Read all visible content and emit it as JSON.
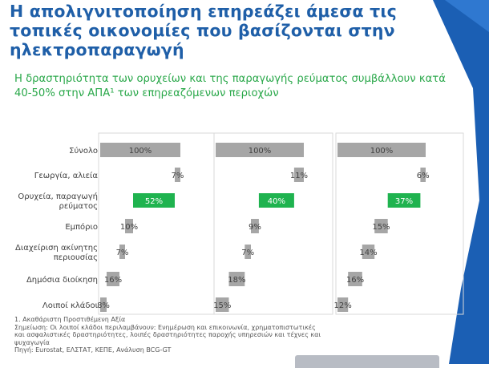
{
  "title": "Η απολιγνιτοποίηση επηρεάζει άμεσα τις τοπικές οικονομίες που βασίζονται στην ηλεκτροπαραγωγή",
  "subtitle": "Η δραστηριότητα των ορυχείων και της παραγωγής ρεύματος συμβάλλουν κατά 40-50% στην ΑΠΑ¹ των επηρεαζόμενων περιοχών",
  "footnotes": [
    "1. Ακαθάριστη Προστιθέμενη Αξία",
    "Σημείωση: Οι λοιποί κλάδοι περιλαμβάνουν: Ενημέρωση και επικοινωνία, χρηματοπιστωτικές",
    "και ασφαλιστικές δραστηριότητες, λοιπές δραστηριότητες παροχής υπηρεσιών και τέχνες και",
    "ψυχαγωγία",
    "Πηγή: Eurostat, ΕΛΣΤΑΤ, ΚΕΠΕ, Ανάλυση BCG-GT"
  ],
  "colors": {
    "title": "#1f5fa8",
    "subtitle": "#2aa84a",
    "bar_gray": "#a6a6a6",
    "bar_green": "#1fb34f",
    "deco_blue": "#1b5fb4"
  },
  "chart_data": {
    "type": "bar",
    "categories": [
      "Σύνολο",
      "Γεωργία, αλιεία",
      "Ορυχεία, παραγωγή ρεύματος",
      "Εμπόριο",
      "Διαχείριση ακίνητης περιουσίας",
      "Δημόσια διοίκηση",
      "Λοιποί κλάδοι"
    ],
    "category_lines": [
      [
        "Σύνολο"
      ],
      [
        "Γεωργία, αλιεία"
      ],
      [
        "Ορυχεία, παραγωγή",
        "ρεύματος"
      ],
      [
        "Εμπόριο"
      ],
      [
        "Διαχείριση ακίνητης",
        "περιουσίας"
      ],
      [
        "Δημόσια διοίκηση"
      ],
      [
        "Λοιποί κλάδοι"
      ]
    ],
    "highlight_index": 2,
    "unit": "%",
    "series": [
      {
        "values": [
          100,
          7,
          52,
          10,
          7,
          16,
          8
        ]
      },
      {
        "values": [
          100,
          11,
          40,
          9,
          7,
          18,
          15
        ]
      },
      {
        "values": [
          100,
          6,
          37,
          15,
          14,
          16,
          12
        ]
      }
    ]
  }
}
